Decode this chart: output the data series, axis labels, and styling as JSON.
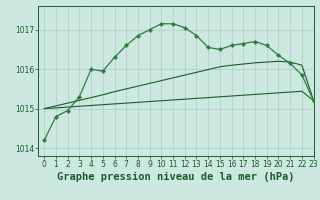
{
  "title": "Graphe pression niveau de la mer (hPa)",
  "background_color": "#cce8e0",
  "grid_color": "#aaccc4",
  "line_color_dark": "#1a5c28",
  "line_color_mid": "#2e7d3e",
  "xlim": [
    -0.5,
    23
  ],
  "ylim": [
    1013.8,
    1017.6
  ],
  "yticks": [
    1014,
    1015,
    1016,
    1017
  ],
  "xticks": [
    0,
    1,
    2,
    3,
    4,
    5,
    6,
    7,
    8,
    9,
    10,
    11,
    12,
    13,
    14,
    15,
    16,
    17,
    18,
    19,
    20,
    21,
    22,
    23
  ],
  "title_fontsize": 7.5,
  "tick_fontsize": 5.5,
  "series_main": [
    1014.2,
    1014.8,
    1014.95,
    1015.3,
    1016.0,
    1015.95,
    1016.3,
    1016.6,
    1016.85,
    1017.0,
    1017.15,
    1017.15,
    1017.05,
    1016.85,
    1016.55,
    1016.5,
    1016.6,
    1016.65,
    1016.7,
    1016.6,
    1016.35,
    1016.15,
    1015.85,
    1015.2
  ],
  "series_linear_upper": [
    1015.0,
    1015.07,
    1015.14,
    1015.21,
    1015.28,
    1015.35,
    1015.43,
    1015.5,
    1015.57,
    1015.64,
    1015.71,
    1015.78,
    1015.85,
    1015.92,
    1015.99,
    1016.06,
    1016.1,
    1016.13,
    1016.16,
    1016.18,
    1016.2,
    1016.18,
    1016.1,
    1015.2
  ],
  "series_linear_lower": [
    1015.0,
    1015.02,
    1015.04,
    1015.06,
    1015.08,
    1015.1,
    1015.12,
    1015.14,
    1015.16,
    1015.18,
    1015.2,
    1015.22,
    1015.24,
    1015.26,
    1015.28,
    1015.3,
    1015.32,
    1015.34,
    1015.36,
    1015.38,
    1015.4,
    1015.42,
    1015.44,
    1015.2
  ],
  "figsize": [
    3.2,
    2.0
  ],
  "dpi": 100
}
